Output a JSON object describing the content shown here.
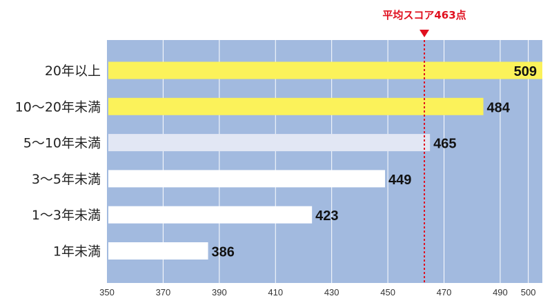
{
  "chart_data": {
    "type": "bar",
    "orientation": "horizontal",
    "categories": [
      "20年以上",
      "10～20年未満",
      "5～10年未満",
      "3～5年未満",
      "1～3年未満",
      "1年未満"
    ],
    "values": [
      509,
      484,
      465,
      449,
      423,
      386
    ],
    "xlim": [
      350,
      505
    ],
    "xticks": [
      350,
      370,
      390,
      410,
      430,
      450,
      470,
      490,
      500
    ],
    "reference_line": {
      "value": 463,
      "label": "平均スコア463点",
      "color": "#e0101f"
    },
    "bar_colors": [
      "#fbf25a",
      "#fbf25a",
      "#e2e7f4",
      "#ffffff",
      "#ffffff",
      "#ffffff"
    ],
    "plot_background": "#a2badf",
    "grid": true
  }
}
